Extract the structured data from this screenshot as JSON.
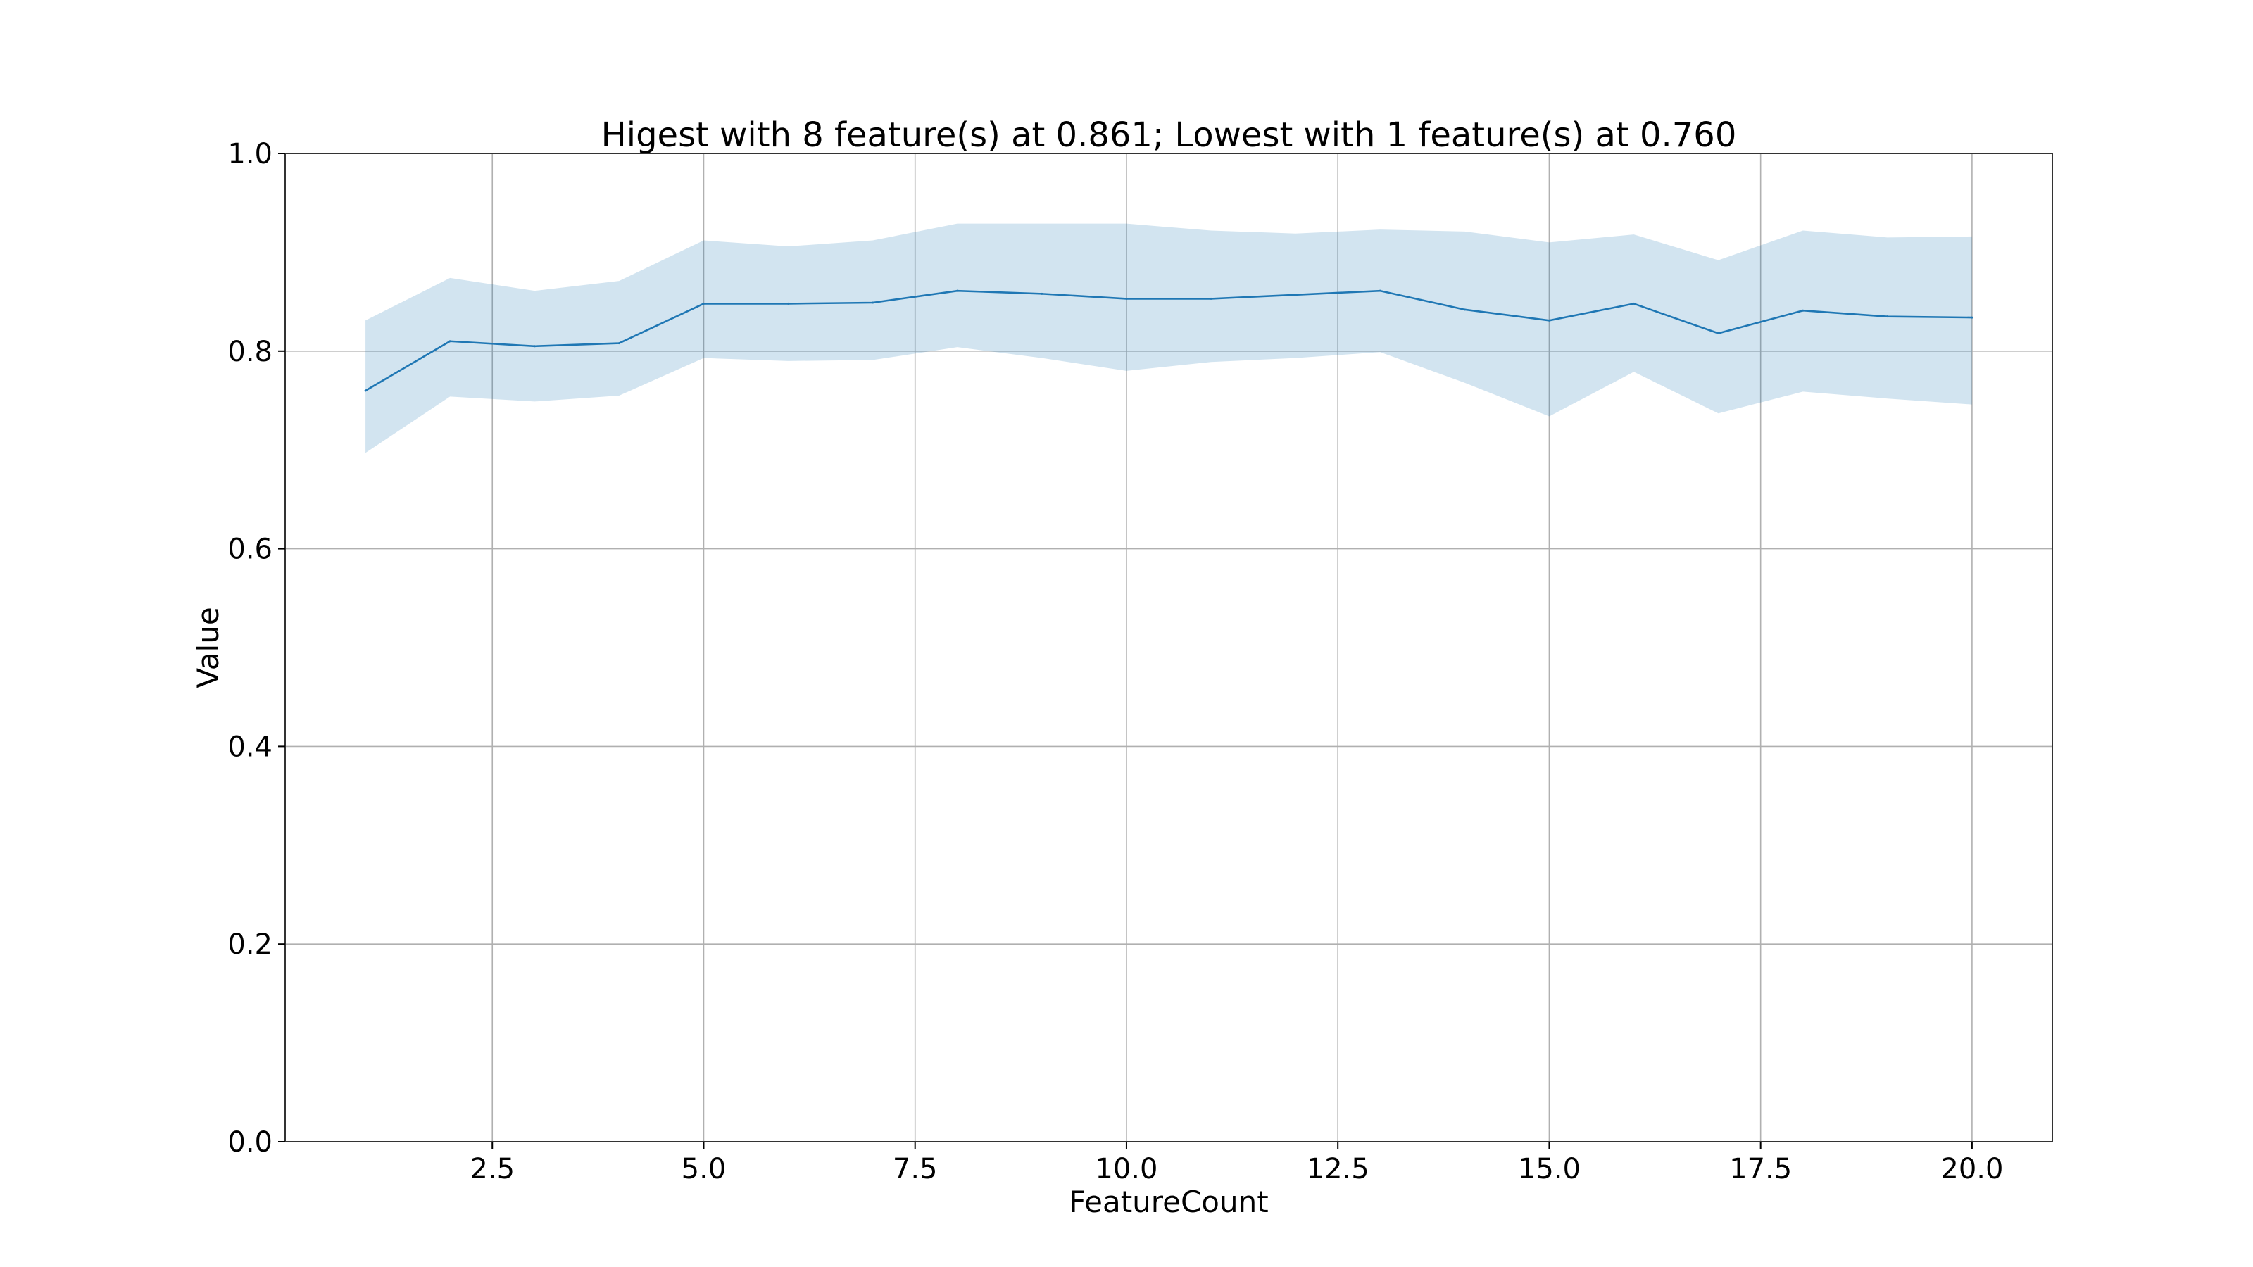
{
  "chart_data": {
    "type": "line",
    "title": "Higest with 8 feature(s) at 0.861; Lowest with 1 feature(s) at 0.760",
    "xlabel": "FeatureCount",
    "ylabel": "Value",
    "xlim": [
      0.05,
      20.95
    ],
    "ylim": [
      0.0,
      1.0
    ],
    "grid": true,
    "x_ticks": [
      2.5,
      5.0,
      7.5,
      10.0,
      12.5,
      15.0,
      17.5,
      20.0
    ],
    "x_tick_labels": [
      "2.5",
      "5.0",
      "7.5",
      "10.0",
      "12.5",
      "15.0",
      "17.5",
      "20.0"
    ],
    "y_ticks": [
      0.0,
      0.2,
      0.4,
      0.6,
      0.8,
      1.0
    ],
    "y_tick_labels": [
      "0.0",
      "0.2",
      "0.4",
      "0.6",
      "0.8",
      "1.0"
    ],
    "line_color": "#1f77b4",
    "band_color": "#1f77b4",
    "band_opacity": 0.2,
    "x": [
      1,
      2,
      3,
      4,
      5,
      6,
      7,
      8,
      9,
      10,
      11,
      12,
      13,
      14,
      15,
      16,
      17,
      18,
      19,
      20
    ],
    "series": [
      {
        "values": [
          0.76,
          0.81,
          0.805,
          0.808,
          0.848,
          0.848,
          0.849,
          0.861,
          0.858,
          0.853,
          0.853,
          0.857,
          0.861,
          0.842,
          0.831,
          0.848,
          0.818,
          0.841,
          0.835,
          0.834
        ],
        "lower": [
          0.697,
          0.754,
          0.749,
          0.755,
          0.793,
          0.79,
          0.791,
          0.804,
          0.793,
          0.78,
          0.789,
          0.793,
          0.799,
          0.768,
          0.734,
          0.779,
          0.737,
          0.759,
          0.752,
          0.746
        ],
        "upper": [
          0.831,
          0.874,
          0.861,
          0.871,
          0.912,
          0.906,
          0.912,
          0.929,
          0.929,
          0.929,
          0.922,
          0.919,
          0.923,
          0.921,
          0.91,
          0.918,
          0.892,
          0.922,
          0.915,
          0.916
        ]
      }
    ]
  }
}
